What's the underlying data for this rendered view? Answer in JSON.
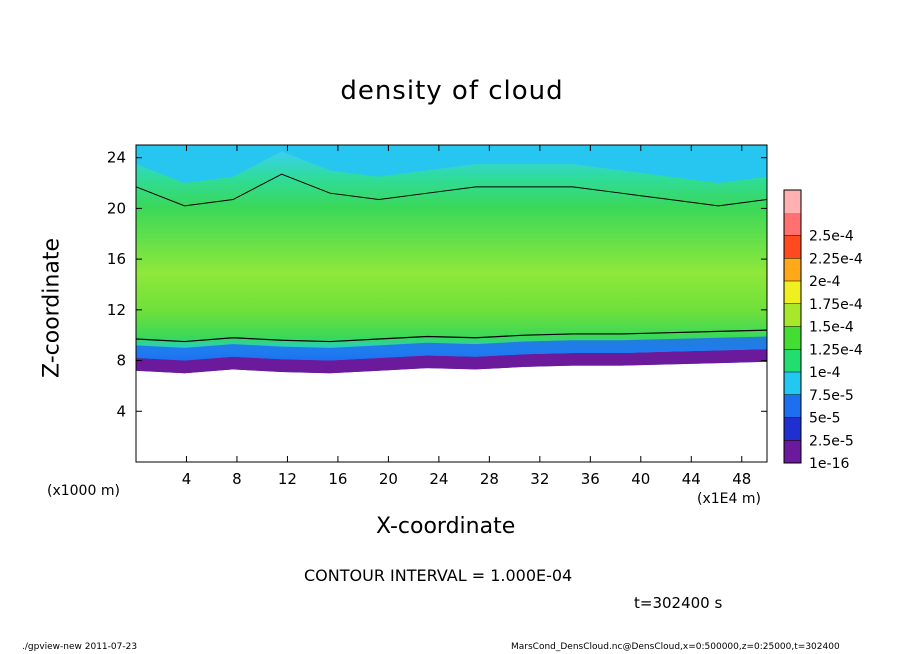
{
  "chart_data": {
    "type": "heatmap",
    "title": "density of cloud",
    "xlabel": "X-coordinate",
    "ylabel": "Z-coordinate",
    "x_unit_left": "(x1000 m)",
    "x_unit_right": "(x1E4 m)",
    "xlim": [
      0,
      50
    ],
    "ylim": [
      0,
      25
    ],
    "x_ticks": [
      4,
      8,
      12,
      16,
      20,
      24,
      28,
      32,
      36,
      40,
      44,
      48
    ],
    "y_ticks": [
      4,
      8,
      12,
      16,
      20,
      24
    ],
    "colorbar": {
      "levels": [
        "1e-16",
        "2.5e-5",
        "5e-5",
        "7.5e-5",
        "1e-4",
        "1.25e-4",
        "1.5e-4",
        "1.75e-4",
        "2e-4",
        "2.25e-4",
        "2.5e-4"
      ],
      "colors": [
        "#6a1a9a",
        "#2030d0",
        "#1e6ef0",
        "#22c8f0",
        "#22dd70",
        "#44dd33",
        "#a8e82a",
        "#f0f020",
        "#ffa818",
        "#ff4a20",
        "#ff7070",
        "#ffb0b0"
      ]
    },
    "cloud_bottom_km": [
      7.2,
      7.0,
      7.3,
      7.1,
      7.0,
      7.2,
      7.4,
      7.3,
      7.5,
      7.6,
      7.6,
      7.7,
      7.8,
      7.9
    ],
    "cloud_top_km": [
      23.5,
      22.0,
      22.5,
      24.5,
      23.0,
      22.5,
      23.0,
      23.5,
      23.5,
      23.5,
      23.0,
      22.5,
      22.0,
      22.5
    ],
    "contour_interval": "CONTOUR INTERVAL = 1.000E-04",
    "time_label": "t=302400 s"
  },
  "footer": {
    "left": "./gpview-new  2011-07-23",
    "right": "MarsCond_DensCloud.nc@DensCloud,x=0:500000,z=0:25000,t=302400"
  }
}
